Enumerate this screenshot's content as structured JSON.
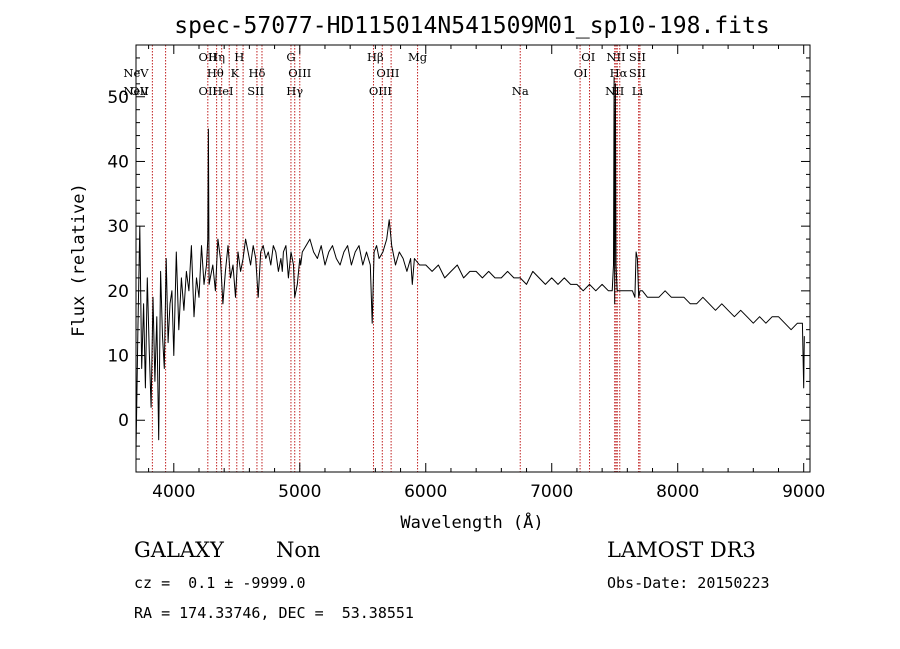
{
  "chart_data": {
    "type": "line",
    "title": "spec-57077-HD115014N541509M01_sp10-198.fits",
    "xlabel": "Wavelength (Å)",
    "ylabel": "Flux (relative)",
    "xlim": [
      3700,
      9050
    ],
    "ylim": [
      -8,
      58
    ],
    "xticks": [
      4000,
      5000,
      6000,
      7000,
      8000,
      9000
    ],
    "yticks": [
      0,
      10,
      20,
      30,
      40,
      50
    ],
    "grid": false,
    "series": [
      {
        "name": "spectrum",
        "x": [
          3700,
          3715,
          3730,
          3745,
          3760,
          3775,
          3790,
          3805,
          3820,
          3835,
          3850,
          3865,
          3880,
          3895,
          3910,
          3925,
          3940,
          3955,
          3970,
          3985,
          4000,
          4020,
          4040,
          4060,
          4080,
          4100,
          4120,
          4140,
          4160,
          4180,
          4200,
          4220,
          4240,
          4260,
          4270,
          4275,
          4280,
          4290,
          4310,
          4330,
          4350,
          4370,
          4390,
          4410,
          4430,
          4450,
          4470,
          4490,
          4510,
          4530,
          4550,
          4570,
          4590,
          4610,
          4630,
          4650,
          4670,
          4690,
          4710,
          4730,
          4750,
          4770,
          4790,
          4810,
          4830,
          4850,
          4861,
          4870,
          4890,
          4910,
          4930,
          4950,
          4960,
          4980,
          5000,
          5007,
          5020,
          5050,
          5080,
          5110,
          5140,
          5170,
          5200,
          5230,
          5260,
          5290,
          5320,
          5350,
          5380,
          5410,
          5440,
          5470,
          5500,
          5530,
          5560,
          5575,
          5590,
          5610,
          5630,
          5660,
          5690,
          5710,
          5730,
          5760,
          5790,
          5820,
          5850,
          5880,
          5893,
          5910,
          5950,
          6000,
          6050,
          6100,
          6150,
          6200,
          6250,
          6300,
          6350,
          6400,
          6450,
          6500,
          6550,
          6600,
          6650,
          6700,
          6750,
          6800,
          6850,
          6900,
          6950,
          7000,
          7050,
          7100,
          7150,
          7200,
          7250,
          7300,
          7350,
          7400,
          7450,
          7480,
          7490,
          7495,
          7500,
          7505,
          7510,
          7520,
          7540,
          7560,
          7600,
          7640,
          7660,
          7670,
          7680,
          7690,
          7700,
          7720,
          7760,
          7800,
          7850,
          7900,
          7950,
          8000,
          8050,
          8100,
          8150,
          8200,
          8250,
          8300,
          8350,
          8400,
          8450,
          8500,
          8550,
          8600,
          8650,
          8700,
          8750,
          8800,
          8850,
          8900,
          8950,
          8990,
          9000,
          9005
        ],
        "y": [
          -5,
          14,
          30,
          8,
          18,
          5,
          22,
          11,
          2,
          19,
          6,
          16,
          -3,
          23,
          13,
          8,
          25,
          12,
          18,
          20,
          10,
          26,
          14,
          22,
          17,
          23,
          20,
          27,
          16,
          22,
          19,
          27,
          21,
          24,
          28,
          45,
          21,
          22,
          24,
          20,
          28,
          25,
          18,
          23,
          27,
          22,
          24,
          19,
          26,
          23,
          25,
          28,
          26,
          24,
          27,
          25,
          19,
          26,
          27,
          25,
          26,
          24,
          27,
          26,
          23,
          25,
          23,
          26,
          27,
          22,
          26,
          24,
          19,
          21,
          25,
          24,
          26,
          27,
          28,
          26,
          25,
          27,
          24,
          26,
          27,
          25,
          24,
          26,
          27,
          24,
          26,
          27,
          24,
          26,
          24,
          15,
          26,
          27,
          25,
          26,
          28,
          31,
          27,
          24,
          26,
          25,
          23,
          25,
          21,
          25,
          24,
          24,
          23,
          24,
          22,
          23,
          24,
          22,
          23,
          23,
          22,
          23,
          22,
          22,
          23,
          22,
          22,
          21,
          23,
          22,
          21,
          22,
          21,
          22,
          21,
          21,
          20,
          21,
          20,
          21,
          20,
          20,
          24,
          53,
          18,
          52,
          24,
          20,
          20,
          20,
          20,
          20,
          19,
          26,
          25,
          19,
          20,
          20,
          19,
          19,
          19,
          20,
          19,
          19,
          19,
          18,
          18,
          19,
          18,
          17,
          18,
          17,
          16,
          17,
          16,
          15,
          16,
          15,
          16,
          16,
          15,
          14,
          15,
          15,
          5,
          13
        ]
      }
    ],
    "spectral_lines": [
      {
        "label": "NeV",
        "wavelength": 3426,
        "row": 2
      },
      {
        "label": "NeV",
        "wavelength": 3426,
        "row": 1
      },
      {
        "label": "OII",
        "wavelength": 3727,
        "row": 3
      },
      {
        "label": "OII",
        "wavelength": 4270,
        "row": 0
      },
      {
        "label": "OII",
        "wavelength": 4270,
        "row": 2
      },
      {
        "label": "Hη",
        "wavelength": 4340,
        "row": 0
      },
      {
        "label": "Hθ",
        "wavelength": 4330,
        "row": 1
      },
      {
        "label": "HeI",
        "wavelength": 4390,
        "row": 2
      },
      {
        "label": "H",
        "wavelength": 4520,
        "row": 0
      },
      {
        "label": "K",
        "wavelength": 4485,
        "row": 1
      },
      {
        "label": "Hδ",
        "wavelength": 4660,
        "row": 1
      },
      {
        "label": "SII",
        "wavelength": 4650,
        "row": 2
      },
      {
        "label": "G",
        "wavelength": 4930,
        "row": 0
      },
      {
        "label": "OIII",
        "wavelength": 5000,
        "row": 1
      },
      {
        "label": "Hγ",
        "wavelength": 4960,
        "row": 2
      },
      {
        "label": "Hβ",
        "wavelength": 5600,
        "row": 0
      },
      {
        "label": "OIII",
        "wavelength": 5700,
        "row": 1
      },
      {
        "label": "OIII",
        "wavelength": 5640,
        "row": 2
      },
      {
        "label": "Mg",
        "wavelength": 5935,
        "row": 0
      },
      {
        "label": "Na",
        "wavelength": 6750,
        "row": 2
      },
      {
        "label": "OI",
        "wavelength": 7290,
        "row": 0
      },
      {
        "label": "OI",
        "wavelength": 7230,
        "row": 1
      },
      {
        "label": "NII",
        "wavelength": 7510,
        "row": 0
      },
      {
        "label": "Hα",
        "wavelength": 7530,
        "row": 1
      },
      {
        "label": "NII",
        "wavelength": 7500,
        "row": 2
      },
      {
        "label": "SII",
        "wavelength": 7680,
        "row": 0
      },
      {
        "label": "SII",
        "wavelength": 7680,
        "row": 1
      },
      {
        "label": "Li",
        "wavelength": 7680,
        "row": 2
      }
    ],
    "marker_lines": [
      3830,
      3935,
      4270,
      4340,
      4380,
      4440,
      4500,
      4550,
      4660,
      4700,
      4930,
      4960,
      5000,
      5585,
      5655,
      5725,
      5935,
      6750,
      7225,
      7300,
      7500,
      7510,
      7520,
      7540,
      7690,
      7700
    ]
  },
  "footer": {
    "classification": "GALAXY",
    "subclass": "Non",
    "redshift": "cz =  0.1 ± -9999.0",
    "coords": "RA = 174.33746, DEC =  53.38551",
    "survey": "LAMOST DR3",
    "obs_date": "Obs-Date: 20150223"
  },
  "colors": {
    "spectrum": "#000000",
    "marker": "#c02020",
    "axes": "#000000"
  }
}
